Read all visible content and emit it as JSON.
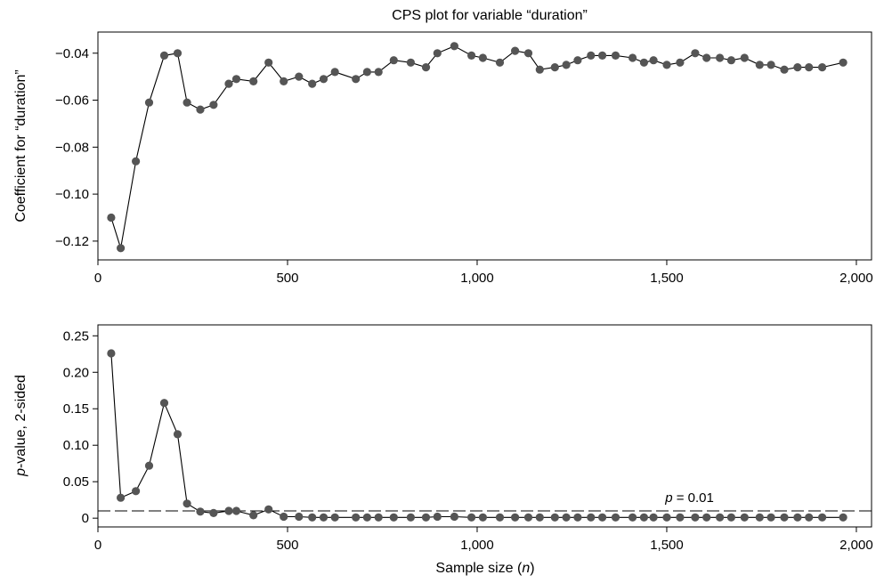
{
  "title": "CPS plot for variable “duration”",
  "chart_data": [
    {
      "type": "line",
      "ylabel": "Coefficient for “duration”",
      "xlabel": "",
      "xlim": [
        0,
        2040
      ],
      "ylim": [
        -0.128,
        -0.031
      ],
      "xticks": [
        0,
        500,
        1000,
        1500,
        2000
      ],
      "xtick_labels": [
        "0",
        "500",
        "1,000",
        "1,500",
        "2,000"
      ],
      "yticks": [
        -0.12,
        -0.1,
        -0.08,
        -0.06,
        -0.04
      ],
      "ytick_labels": [
        "−0.12",
        "−0.10",
        "−0.08",
        "−0.06",
        "−0.04"
      ],
      "grid": false,
      "color": "#555555",
      "series": [
        {
          "x": [
            35,
            60,
            100,
            135,
            175,
            210,
            235,
            270,
            305,
            345,
            365,
            410,
            450,
            490,
            530,
            565,
            595,
            625,
            680,
            710,
            740,
            780,
            825,
            865,
            895,
            940,
            985,
            1015,
            1060,
            1100,
            1135,
            1165,
            1205,
            1235,
            1265,
            1300,
            1330,
            1365,
            1410,
            1440,
            1465,
            1500,
            1535,
            1575,
            1605,
            1640,
            1670,
            1705,
            1745,
            1775,
            1810,
            1845,
            1875,
            1910,
            1965
          ],
          "y": [
            -0.11,
            -0.123,
            -0.086,
            -0.061,
            -0.041,
            -0.04,
            -0.061,
            -0.064,
            -0.062,
            -0.053,
            -0.051,
            -0.052,
            -0.044,
            -0.052,
            -0.05,
            -0.053,
            -0.051,
            -0.048,
            -0.051,
            -0.048,
            -0.048,
            -0.043,
            -0.044,
            -0.046,
            -0.04,
            -0.037,
            -0.041,
            -0.042,
            -0.044,
            -0.039,
            -0.04,
            -0.047,
            -0.046,
            -0.045,
            -0.043,
            -0.041,
            -0.041,
            -0.041,
            -0.042,
            -0.044,
            -0.043,
            -0.045,
            -0.044,
            -0.04,
            -0.042,
            -0.042,
            -0.043,
            -0.042,
            -0.045,
            -0.045,
            -0.047,
            -0.046,
            -0.046,
            -0.046,
            -0.044
          ]
        }
      ]
    },
    {
      "type": "line",
      "ylabel_italic": "p",
      "ylabel_rest": "-value, 2-sided",
      "xlabel_pre": "Sample size (",
      "xlabel_italic": "n",
      "xlabel_post": ")",
      "xlim": [
        0,
        2040
      ],
      "ylim": [
        -0.012,
        0.265
      ],
      "xticks": [
        0,
        500,
        1000,
        1500,
        2000
      ],
      "xtick_labels": [
        "0",
        "500",
        "1,000",
        "1,500",
        "2,000"
      ],
      "yticks": [
        0,
        0.05,
        0.1,
        0.15,
        0.2,
        0.25
      ],
      "ytick_labels": [
        "0",
        "0.05",
        "0.10",
        "0.15",
        "0.20",
        "0.25"
      ],
      "grid": false,
      "color": "#555555",
      "reference_line": {
        "y": 0.01,
        "label_italic": "p",
        "label_rest": " = 0.01"
      },
      "series": [
        {
          "x": [
            35,
            60,
            100,
            135,
            175,
            210,
            235,
            270,
            305,
            345,
            365,
            410,
            450,
            490,
            530,
            565,
            595,
            625,
            680,
            710,
            740,
            780,
            825,
            865,
            895,
            940,
            985,
            1015,
            1060,
            1100,
            1135,
            1165,
            1205,
            1235,
            1265,
            1300,
            1330,
            1365,
            1410,
            1440,
            1465,
            1500,
            1535,
            1575,
            1605,
            1640,
            1670,
            1705,
            1745,
            1775,
            1810,
            1845,
            1875,
            1910,
            1965
          ],
          "y": [
            0.226,
            0.028,
            0.037,
            0.072,
            0.158,
            0.115,
            0.02,
            0.009,
            0.007,
            0.01,
            0.01,
            0.004,
            0.012,
            0.002,
            0.002,
            0.001,
            0.001,
            0.001,
            0.001,
            0.001,
            0.001,
            0.001,
            0.001,
            0.001,
            0.002,
            0.002,
            0.001,
            0.001,
            0.001,
            0.001,
            0.001,
            0.001,
            0.001,
            0.001,
            0.001,
            0.001,
            0.001,
            0.001,
            0.001,
            0.001,
            0.001,
            0.001,
            0.001,
            0.001,
            0.001,
            0.001,
            0.001,
            0.001,
            0.001,
            0.001,
            0.001,
            0.001,
            0.001,
            0.001,
            0.001
          ]
        }
      ]
    }
  ]
}
